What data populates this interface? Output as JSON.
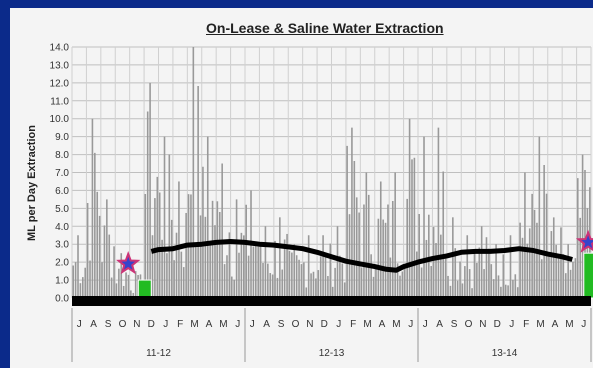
{
  "chart_data": {
    "type": "bar",
    "title": "On-Lease & Saline Water Extraction",
    "ylabel": "ML per Day Extraction",
    "xlabel": "",
    "ylim": [
      0,
      14.0
    ],
    "ytick_labels": [
      "0.0",
      "1.0",
      "2.0",
      "3.0",
      "4.0",
      "5.0",
      "6.0",
      "7.0",
      "8.0",
      "9.0",
      "10.0",
      "11.0",
      "12.0",
      "13.0",
      "14.0"
    ],
    "month_labels": [
      "J",
      "A",
      "S",
      "O",
      "N",
      "D",
      "J",
      "F",
      "M",
      "A",
      "M",
      "J",
      "J",
      "A",
      "S",
      "O",
      "N",
      "D",
      "J",
      "F",
      "M",
      "A",
      "M",
      "J",
      "J",
      "A",
      "S",
      "O",
      "N",
      "D",
      "J",
      "F",
      "M",
      "A",
      "M",
      "J"
    ],
    "year_labels": [
      "11-12",
      "12-13",
      "13-14"
    ],
    "grid": true,
    "series": [
      {
        "kind": "bar",
        "color": "#999999",
        "monthly_max": [
          3.5,
          10.0,
          5.5,
          2.5,
          1.5,
          12.0,
          9.0,
          6.5,
          14.0,
          9.0,
          7.5,
          5.5,
          6.0,
          4.0,
          4.5,
          3.0,
          3.5,
          3.5,
          4.0,
          9.5,
          7.0,
          6.5,
          7.0,
          10.0,
          9.0,
          9.5,
          4.5,
          3.5,
          4.0,
          3.0,
          3.5,
          7.0,
          9.0,
          4.5,
          3.0,
          8.0
        ]
      },
      {
        "kind": "line",
        "color": "#000000",
        "points": [
          [
            5.5,
            2.6
          ],
          [
            6.0,
            2.7
          ],
          [
            7.0,
            2.75
          ],
          [
            8.0,
            2.95
          ],
          [
            9.0,
            3.0
          ],
          [
            10.0,
            3.1
          ],
          [
            11.0,
            3.15
          ],
          [
            12.0,
            3.1
          ],
          [
            13.0,
            3.0
          ],
          [
            14.0,
            2.95
          ],
          [
            15.0,
            2.85
          ],
          [
            16.0,
            2.75
          ],
          [
            17.0,
            2.55
          ],
          [
            18.0,
            2.3
          ],
          [
            19.0,
            2.05
          ],
          [
            20.0,
            1.9
          ],
          [
            21.0,
            1.75
          ],
          [
            21.8,
            1.6
          ],
          [
            22.5,
            1.55
          ],
          [
            23.0,
            1.75
          ],
          [
            24.0,
            2.0
          ],
          [
            25.0,
            2.2
          ],
          [
            26.0,
            2.35
          ],
          [
            27.0,
            2.55
          ],
          [
            28.0,
            2.6
          ],
          [
            29.0,
            2.6
          ],
          [
            30.0,
            2.65
          ],
          [
            31.0,
            2.75
          ],
          [
            32.0,
            2.65
          ],
          [
            33.0,
            2.45
          ],
          [
            34.0,
            2.3
          ],
          [
            34.7,
            2.15
          ]
        ]
      },
      {
        "kind": "bar-highlight",
        "items": [
          {
            "month_index": 4.6,
            "value": 1.0,
            "color": "#22bb22"
          },
          {
            "month_index": 35.5,
            "value": 2.5,
            "color": "#22bb22"
          }
        ]
      },
      {
        "kind": "marker",
        "items": [
          {
            "month_index": 3.9,
            "value": 1.9,
            "symbol": "star",
            "color": "#3344cc",
            "edge": "#cc3377"
          },
          {
            "month_index": 35.8,
            "value": 3.1,
            "symbol": "star",
            "color": "#3344cc",
            "edge": "#cc3377"
          }
        ]
      }
    ]
  }
}
